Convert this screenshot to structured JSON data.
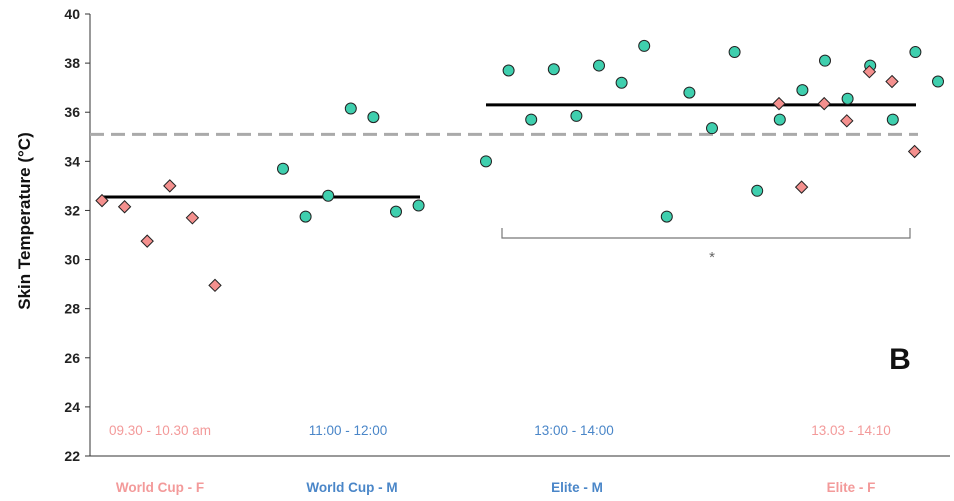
{
  "chart_data": {
    "type": "scatter",
    "ylabel": "Skin Temperature (°C)",
    "ylim": [
      22,
      40
    ],
    "yticks": [
      22,
      24,
      26,
      28,
      30,
      32,
      34,
      36,
      38,
      40
    ],
    "grid": false,
    "panel_label": "B",
    "reference_line": {
      "value": 35.1,
      "style": "dashed",
      "color": "#aaaaaa"
    },
    "colors": {
      "female_marker": "#f4908e",
      "male_marker": "#3fcfae",
      "female_label": "#f39a9a",
      "male_label": "#4a86c8",
      "mean_line": "#000000"
    },
    "groups": [
      {
        "label": "World Cup - F",
        "time": "09.30 - 10.30 am",
        "marker": "diamond",
        "sex": "female",
        "values": [
          32.4,
          32.15,
          30.75,
          33.0,
          31.7,
          28.95
        ]
      },
      {
        "label": "World Cup - M",
        "time": "11:00 - 12:00",
        "marker": "circle",
        "sex": "male",
        "values": [
          33.7,
          31.75,
          32.6,
          36.15,
          35.8,
          31.95,
          32.2
        ]
      },
      {
        "label": "Elite - M",
        "time": "13:00 - 14:00",
        "marker": "circle",
        "sex": "male",
        "values": [
          34.0,
          37.7,
          35.7,
          37.75,
          35.85,
          37.9,
          37.2,
          38.7,
          31.75,
          36.8,
          35.35,
          38.45,
          32.8,
          35.7,
          36.9,
          38.1,
          36.55,
          37.9,
          35.7,
          38.45,
          37.25,
          35.45
        ]
      },
      {
        "label": "Elite - F",
        "time": "13.03 - 14:10",
        "marker": "diamond",
        "sex": "female",
        "values": [
          36.35,
          32.95,
          36.35,
          35.65,
          37.65,
          37.25,
          34.4
        ]
      }
    ],
    "means": [
      {
        "groups": [
          "World Cup - F",
          "World Cup - M"
        ],
        "value": 32.55
      },
      {
        "groups": [
          "Elite - M",
          "Elite - F"
        ],
        "value": 36.3
      }
    ],
    "significance": {
      "groups": [
        "Elite - M",
        "Elite - F"
      ],
      "label": "*"
    }
  }
}
